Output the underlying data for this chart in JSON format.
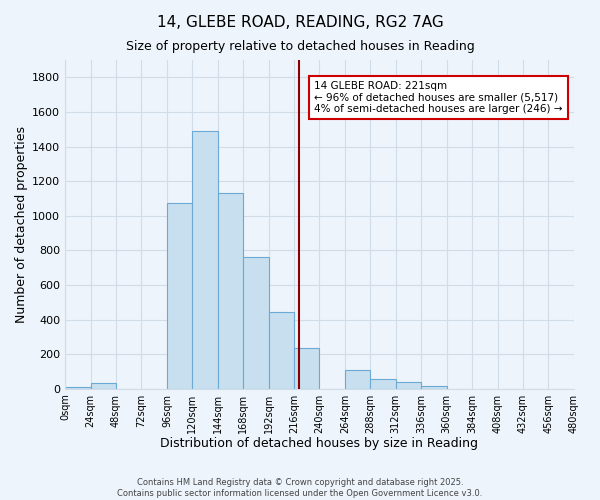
{
  "title": "14, GLEBE ROAD, READING, RG2 7AG",
  "subtitle": "Size of property relative to detached houses in Reading",
  "xlabel": "Distribution of detached houses by size in Reading",
  "ylabel": "Number of detached properties",
  "bin_edges": [
    0,
    24,
    48,
    72,
    96,
    120,
    144,
    168,
    192,
    216,
    240,
    264,
    288,
    312,
    336,
    360,
    384,
    408,
    432,
    456,
    480
  ],
  "bar_heights": [
    10,
    35,
    0,
    0,
    1075,
    1490,
    1130,
    760,
    445,
    235,
    0,
    110,
    55,
    40,
    15,
    0,
    0,
    0,
    0,
    0
  ],
  "bar_color": "#c8dff0",
  "bar_edge_color": "#6aaad4",
  "property_line_x": 221,
  "annotation_title": "14 GLEBE ROAD: 221sqm",
  "annotation_line1": "← 96% of detached houses are smaller (5,517)",
  "annotation_line2": "4% of semi-detached houses are larger (246) →",
  "annotation_box_color": "#ffffff",
  "annotation_box_edge_color": "#cc0000",
  "line_color": "#8b0000",
  "ylim": [
    0,
    1900
  ],
  "xlim": [
    0,
    480
  ],
  "yticks": [
    0,
    200,
    400,
    600,
    800,
    1000,
    1200,
    1400,
    1600,
    1800
  ],
  "xtick_step": 24,
  "background_color": "#eef4fb",
  "grid_color": "#d0dce8",
  "footer_line1": "Contains HM Land Registry data © Crown copyright and database right 2025.",
  "footer_line2": "Contains public sector information licensed under the Open Government Licence v3.0."
}
